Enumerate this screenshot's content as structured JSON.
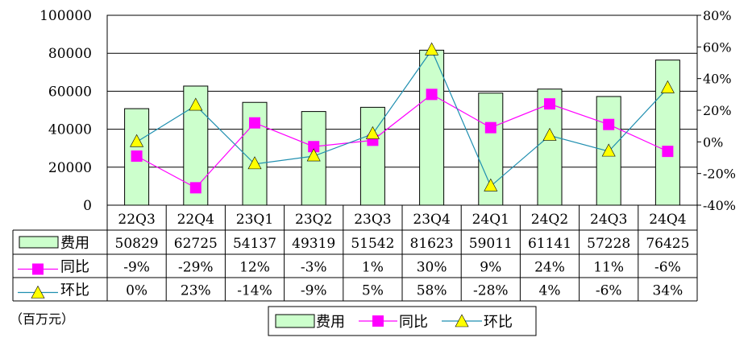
{
  "chart_data": {
    "type": "bar",
    "categories": [
      "22Q3",
      "22Q4",
      "23Q1",
      "23Q2",
      "23Q3",
      "23Q4",
      "24Q1",
      "24Q2",
      "24Q3",
      "24Q4"
    ],
    "series": [
      {
        "name": "费用",
        "type": "bar",
        "axis": "left",
        "color": "#ccffcc",
        "values": [
          50829,
          62725,
          54137,
          49319,
          51542,
          81623,
          59011,
          61141,
          57228,
          76425
        ],
        "labels": [
          "50829",
          "62725",
          "54137",
          "49319",
          "51542",
          "81623",
          "59011",
          "61141",
          "57228",
          "76425"
        ]
      },
      {
        "name": "同比",
        "type": "line",
        "axis": "right",
        "color": "#ff00ff",
        "marker": "square",
        "values": [
          -9,
          -29,
          12,
          -3,
          1,
          30,
          9,
          24,
          11,
          -6
        ],
        "labels": [
          "-9%",
          "-29%",
          "12%",
          "-3%",
          "1%",
          "30%",
          "9%",
          "24%",
          "11%",
          "-6%"
        ]
      },
      {
        "name": "环比",
        "type": "line",
        "axis": "right",
        "color": "#1f8fb0",
        "marker": "triangle",
        "marker_color": "#ffff00",
        "values": [
          0,
          23,
          -14,
          -9,
          5,
          58,
          -28,
          4,
          -6,
          34
        ],
        "labels": [
          "0%",
          "23%",
          "-14%",
          "-9%",
          "5%",
          "58%",
          "-28%",
          "4%",
          "-6%",
          "34%"
        ]
      }
    ],
    "y_left": {
      "ylim": [
        0,
        100000
      ],
      "ticks": [
        "0",
        "20000",
        "40000",
        "60000",
        "80000",
        "100000"
      ]
    },
    "y_right": {
      "ylim": [
        -40,
        80
      ],
      "ticks": [
        "-40%",
        "-20%",
        "0%",
        "20%",
        "40%",
        "60%",
        "80%"
      ]
    },
    "unit_note": "（百万元）",
    "grid": true,
    "data_table": true,
    "legend_position": "bottom-center"
  }
}
